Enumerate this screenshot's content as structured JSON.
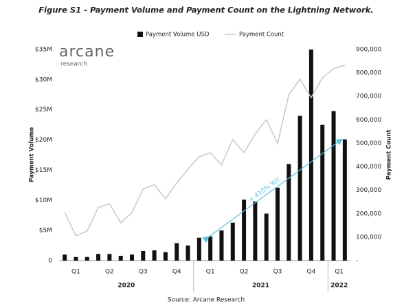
{
  "chart_data": {
    "type": "bar",
    "title": "Figure S1 - Payment Volume and Payment Count on the Lightning Network.",
    "logo": "arcane",
    "logo_sub": "research",
    "ylabel": "Payment Volume",
    "y2label": "Payment Count",
    "source": "Source: Arcane Research",
    "annotation": "+ 410% YoY",
    "categories": [
      null,
      null,
      null,
      null,
      null,
      null,
      null,
      null,
      null,
      null,
      null,
      null,
      null,
      null,
      null,
      null,
      null,
      null,
      null,
      null,
      null,
      null,
      null,
      null,
      null,
      null
    ],
    "quarters": [
      "Q1",
      "Q2",
      "Q3",
      "Q4",
      "Q1",
      "Q2",
      "Q3",
      "Q4",
      "Q1"
    ],
    "years": [
      "2020",
      "2021",
      "2022"
    ],
    "series": [
      {
        "name": "Payment Volume USD",
        "type": "bar",
        "color": "#111111",
        "values": [
          1000000,
          600000,
          600000,
          1100000,
          1100000,
          800000,
          1000000,
          1600000,
          1700000,
          1400000,
          2900000,
          2500000,
          3800000,
          4000000,
          5000000,
          6300000,
          10100000,
          9800000,
          7800000,
          12100000,
          16000000,
          24000000,
          35000000,
          22500000,
          24800000,
          20100000
        ]
      },
      {
        "name": "Payment Count",
        "type": "line",
        "color": "#c8c8c8",
        "axis": "y2",
        "values": [
          205000,
          106000,
          126000,
          226000,
          243000,
          161000,
          205000,
          305000,
          323000,
          264000,
          331000,
          390000,
          443000,
          460000,
          408000,
          516000,
          460000,
          540000,
          601000,
          499000,
          707000,
          774000,
          695000,
          780000,
          818000,
          833000
        ]
      }
    ],
    "ylim": [
      0,
      35000000
    ],
    "yticks": [
      0,
      {
        "value": 5000000,
        "label": "$5M"
      },
      {
        "value": 10000000,
        "label": "$10M"
      },
      {
        "value": 15000000,
        "label": "$15M"
      },
      {
        "value": 20000000,
        "label": "$20M"
      },
      {
        "value": 25000000,
        "label": "$25M"
      },
      {
        "value": 30000000,
        "label": "$30M"
      },
      {
        "value": 35000000,
        "label": "$35M"
      }
    ],
    "y2lim": [
      0,
      900000
    ],
    "y2ticks": [
      {
        "value": 0,
        "label": "-"
      },
      {
        "value": 100000,
        "label": "100,000"
      },
      {
        "value": 200000,
        "label": "200,000"
      },
      {
        "value": 300000,
        "label": "300,000"
      },
      {
        "value": 400000,
        "label": "400,000"
      },
      {
        "value": 500000,
        "label": "500,000"
      },
      {
        "value": 600000,
        "label": "600,000"
      },
      {
        "value": 700000,
        "label": "700,000"
      },
      {
        "value": 800000,
        "label": "800,000"
      },
      {
        "value": 900000,
        "label": "900,000"
      }
    ],
    "annotation_color": "#5bc0de"
  }
}
